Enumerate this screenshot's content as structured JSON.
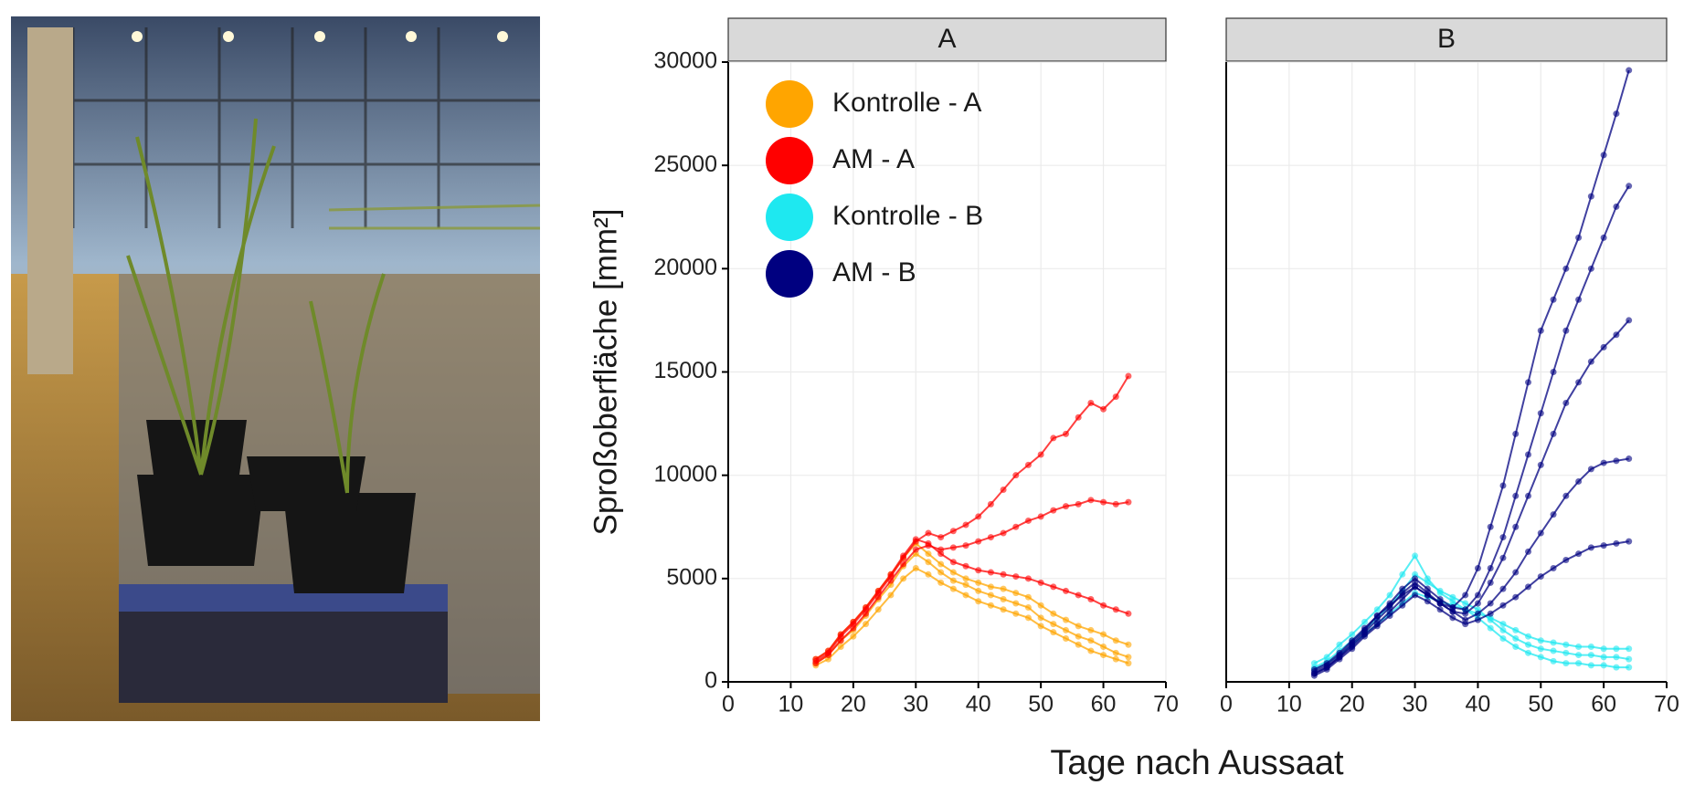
{
  "chart_data": [
    {
      "type": "line",
      "title": "A",
      "ylabel": "Sproßoberfläche [mm²]",
      "xlabel": "Tage nach Aussaat",
      "xlim": [
        0,
        70
      ],
      "xticks": [
        0,
        10,
        20,
        30,
        40,
        50,
        60,
        70
      ],
      "ylim": [
        0,
        30000
      ],
      "yticks": [
        0,
        5000,
        10000,
        15000,
        20000,
        25000,
        30000
      ],
      "grid": true,
      "legend": "top-left",
      "x": [
        14,
        16,
        18,
        20,
        22,
        24,
        26,
        28,
        30,
        32,
        34,
        36,
        38,
        40,
        42,
        44,
        46,
        48,
        50,
        52,
        54,
        56,
        58,
        60,
        62,
        64
      ],
      "series": [
        {
          "name": "Kontrolle - A",
          "color": "#ffa500",
          "lines": [
            [
              900,
              1300,
              2000,
              2500,
              3200,
              4000,
              4700,
              5600,
              6200,
              5800,
              5300,
              4900,
              4700,
              4400,
              4200,
              4000,
              3800,
              3600,
              3100,
              2800,
              2500,
              2200,
              2000,
              1700,
              1400,
              1200
            ],
            [
              1100,
              1500,
              2300,
              2900,
              3600,
              4400,
              5200,
              6000,
              6700,
              6200,
              5700,
              5300,
              5000,
              4800,
              4600,
              4500,
              4300,
              4100,
              3700,
              3300,
              3000,
              2700,
              2500,
              2300,
              2000,
              1800
            ],
            [
              800,
              1100,
              1700,
              2200,
              2800,
              3500,
              4200,
              5000,
              5500,
              5200,
              4800,
              4500,
              4200,
              3900,
              3700,
              3500,
              3300,
              3100,
              2700,
              2400,
              2100,
              1800,
              1500,
              1300,
              1100,
              900
            ]
          ]
        },
        {
          "name": "AM - A",
          "color": "#ff0000",
          "lines": [
            [
              1000,
              1400,
              2200,
              2800,
              3500,
              4300,
              5100,
              6000,
              6800,
              7200,
              7000,
              7300,
              7600,
              8000,
              8600,
              9300,
              10000,
              10500,
              11000,
              11800,
              12000,
              12800,
              13500,
              13200,
              13800,
              14800
            ],
            [
              900,
              1300,
              2000,
              2600,
              3300,
              4100,
              4900,
              5700,
              6400,
              6600,
              6400,
              6500,
              6600,
              6800,
              7000,
              7200,
              7500,
              7800,
              8000,
              8300,
              8500,
              8600,
              8800,
              8700,
              8600,
              8700
            ],
            [
              1100,
              1500,
              2300,
              2900,
              3600,
              4400,
              5200,
              6100,
              6900,
              6700,
              6200,
              5800,
              5600,
              5400,
              5300,
              5200,
              5100,
              5000,
              4800,
              4600,
              4400,
              4200,
              4000,
              3700,
              3500,
              3300
            ]
          ]
        }
      ]
    },
    {
      "type": "line",
      "title": "B",
      "xlim": [
        0,
        70
      ],
      "xticks": [
        0,
        10,
        20,
        30,
        40,
        50,
        60,
        70
      ],
      "ylim": [
        0,
        30000
      ],
      "yticks": [
        0,
        5000,
        10000,
        15000,
        20000,
        25000,
        30000
      ],
      "grid": true,
      "x": [
        14,
        16,
        18,
        20,
        22,
        24,
        26,
        28,
        30,
        32,
        34,
        36,
        38,
        40,
        42,
        44,
        46,
        48,
        50,
        52,
        54,
        56,
        58,
        60,
        62,
        64
      ],
      "series": [
        {
          "name": "Kontrolle - B",
          "color": "#1ee8f0",
          "lines": [
            [
              700,
              1000,
              1500,
              2000,
              2500,
              3100,
              3700,
              4400,
              5200,
              4800,
              4400,
              4100,
              3800,
              3500,
              3000,
              2500,
              2100,
              1800,
              1600,
              1500,
              1400,
              1300,
              1300,
              1200,
              1200,
              1100
            ],
            [
              900,
              1200,
              1800,
              2300,
              2900,
              3500,
              4200,
              5200,
              6100,
              5000,
              4300,
              3900,
              3500,
              3100,
              2600,
              2100,
              1700,
              1400,
              1200,
              1000,
              900,
              900,
              800,
              800,
              700,
              700
            ],
            [
              600,
              900,
              1300,
              1800,
              2300,
              2800,
              3300,
              3800,
              4300,
              4100,
              3900,
              3700,
              3500,
              3300,
              3100,
              2800,
              2500,
              2200,
              2000,
              1900,
              1800,
              1700,
              1700,
              1600,
              1600,
              1600
            ]
          ]
        },
        {
          "name": "AM - B",
          "color": "#000080",
          "lines": [
            [
              400,
              700,
              1200,
              1800,
              2400,
              3000,
              3600,
              4300,
              4800,
              4300,
              3800,
              3600,
              4200,
              5500,
              7500,
              9500,
              12000,
              14500,
              17000,
              18500,
              20000,
              21500,
              23500,
              25500,
              27500,
              29600
            ],
            [
              500,
              800,
              1300,
              1900,
              2500,
              3200,
              3800,
              4500,
              5000,
              4500,
              4000,
              3600,
              3500,
              4200,
              5500,
              7000,
              9000,
              11000,
              13000,
              15000,
              17000,
              18500,
              20000,
              21500,
              23000,
              24000
            ],
            [
              400,
              700,
              1200,
              1700,
              2300,
              2800,
              3400,
              4000,
              4600,
              4200,
              3800,
              3400,
              3300,
              3800,
              4800,
              6000,
              7500,
              9000,
              10500,
              12000,
              13500,
              14500,
              15500,
              16200,
              16800,
              17500
            ],
            [
              600,
              900,
              1400,
              2000,
              2600,
              3200,
              3700,
              4200,
              4600,
              4200,
              3800,
              3400,
              3000,
              3300,
              3800,
              4500,
              5300,
              6300,
              7200,
              8100,
              9000,
              9700,
              10300,
              10600,
              10700,
              10800
            ],
            [
              300,
              600,
              1100,
              1600,
              2200,
              2700,
              3200,
              3700,
              4200,
              3900,
              3500,
              3100,
              2800,
              3000,
              3300,
              3700,
              4100,
              4600,
              5100,
              5500,
              5900,
              6200,
              6500,
              6600,
              6700,
              6800
            ]
          ]
        }
      ]
    }
  ]
}
